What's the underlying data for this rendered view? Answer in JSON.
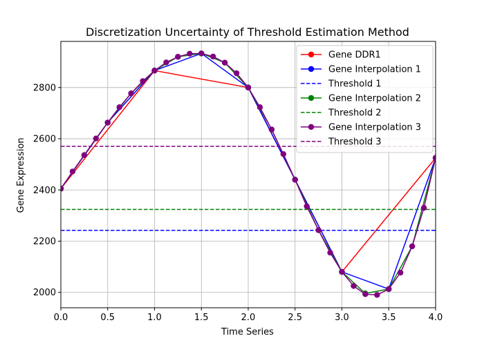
{
  "chart_data": {
    "type": "line",
    "title": "Discretization Uncertainty of Threshold Estimation Method",
    "xlabel": "Time Series",
    "ylabel": "Gene Expression",
    "xlim": [
      0.0,
      4.0
    ],
    "ylim": [
      1940,
      2980
    ],
    "xticks": [
      0.0,
      0.5,
      1.0,
      1.5,
      2.0,
      2.5,
      3.0,
      3.5,
      4.0
    ],
    "xtick_labels": [
      "0.0",
      "0.5",
      "1.0",
      "1.5",
      "2.0",
      "2.5",
      "3.0",
      "3.5",
      "4.0"
    ],
    "yticks": [
      2000,
      2200,
      2400,
      2600,
      2800
    ],
    "ytick_labels": [
      "2000",
      "2200",
      "2400",
      "2600",
      "2800"
    ],
    "grid": true,
    "legend_position": "top-right",
    "series": [
      {
        "name": "Gene DDR1",
        "kind": "line-marker",
        "color": "#ff0000",
        "x": [
          0.0,
          1.0,
          2.0,
          3.0,
          4.0
        ],
        "y": [
          2405,
          2866,
          2800,
          2080,
          2525
        ]
      },
      {
        "name": "Gene Interpolation 1",
        "kind": "line-marker",
        "color": "#0000ff",
        "x": [
          0.0,
          0.5,
          1.0,
          1.5,
          2.0,
          2.5,
          3.0,
          3.5,
          4.0
        ],
        "y": [
          2405,
          2663,
          2866,
          2933,
          2800,
          2440,
          2080,
          2013,
          2525
        ]
      },
      {
        "name": "Threshold 1",
        "kind": "hline",
        "color": "#0000ff",
        "y": 2242
      },
      {
        "name": "Gene Interpolation 2",
        "kind": "line-marker",
        "color": "#008000",
        "x": [
          0.0,
          0.25,
          0.5,
          0.75,
          1.0,
          1.25,
          1.5,
          1.75,
          2.0,
          2.25,
          2.5,
          2.75,
          3.0,
          3.25,
          3.5,
          3.75,
          4.0
        ],
        "y": [
          2405,
          2536,
          2663,
          2777,
          2866,
          2920,
          2933,
          2897,
          2800,
          2636,
          2440,
          2243,
          2080,
          1996,
          2013,
          2180,
          2525
        ]
      },
      {
        "name": "Threshold 2",
        "kind": "hline",
        "color": "#008000",
        "y": 2324
      },
      {
        "name": "Gene Interpolation 3",
        "kind": "line-marker",
        "color": "#800080",
        "x": [
          0.0,
          0.125,
          0.25,
          0.375,
          0.5,
          0.625,
          0.75,
          0.875,
          1.0,
          1.125,
          1.25,
          1.375,
          1.5,
          1.625,
          1.75,
          1.875,
          2.0,
          2.125,
          2.25,
          2.375,
          2.5,
          2.625,
          2.75,
          2.875,
          3.0,
          3.125,
          3.25,
          3.375,
          3.5,
          3.625,
          3.75,
          3.875,
          4.0
        ],
        "y": [
          2405,
          2472,
          2536,
          2601,
          2663,
          2723,
          2777,
          2825,
          2866,
          2898,
          2920,
          2932,
          2933,
          2921,
          2897,
          2856,
          2800,
          2723,
          2636,
          2540,
          2440,
          2336,
          2243,
          2155,
          2080,
          2025,
          1993,
          1990,
          2013,
          2077,
          2180,
          2330,
          2525
        ]
      },
      {
        "name": "Threshold 3",
        "kind": "hline",
        "color": "#800080",
        "y": 2570
      }
    ]
  }
}
